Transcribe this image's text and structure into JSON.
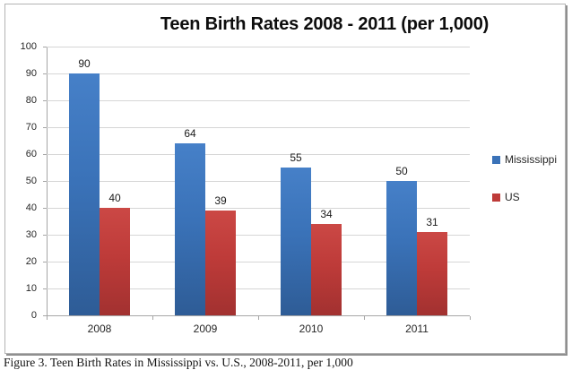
{
  "title": "Teen Birth Rates 2008 - 2011 (per 1,000)",
  "caption": "Figure 3. Teen Birth Rates in Mississippi vs. U.S., 2008-2011, per 1,000",
  "colors": {
    "mississippi": "#3a72b8",
    "us": "#be3b39",
    "gridline": "#d6d6d6",
    "axis": "#a6a6a6",
    "frame_border": "#b3b3b3"
  },
  "legend": {
    "position": "right",
    "items": [
      {
        "label": "Mississippi",
        "color": "#3a72b8"
      },
      {
        "label": "US",
        "color": "#be3b39"
      }
    ]
  },
  "chart_data": {
    "type": "bar",
    "title": "Teen Birth Rates 2008 - 2011 (per 1,000)",
    "categories": [
      "2008",
      "2009",
      "2010",
      "2011"
    ],
    "series": [
      {
        "name": "Mississippi",
        "values": [
          90,
          64,
          55,
          50
        ],
        "color": "#3a72b8",
        "color_top": "#4680c8",
        "color_bottom": "#2e5c96"
      },
      {
        "name": "US",
        "values": [
          40,
          39,
          34,
          31
        ],
        "color": "#be3b39",
        "color_top": "#cb4845",
        "color_bottom": "#a23130"
      }
    ],
    "xlabel": "",
    "ylabel": "",
    "ylim": [
      0,
      100
    ],
    "ytick_step": 10,
    "grid": true,
    "legend_position": "right",
    "data_labels": true
  }
}
